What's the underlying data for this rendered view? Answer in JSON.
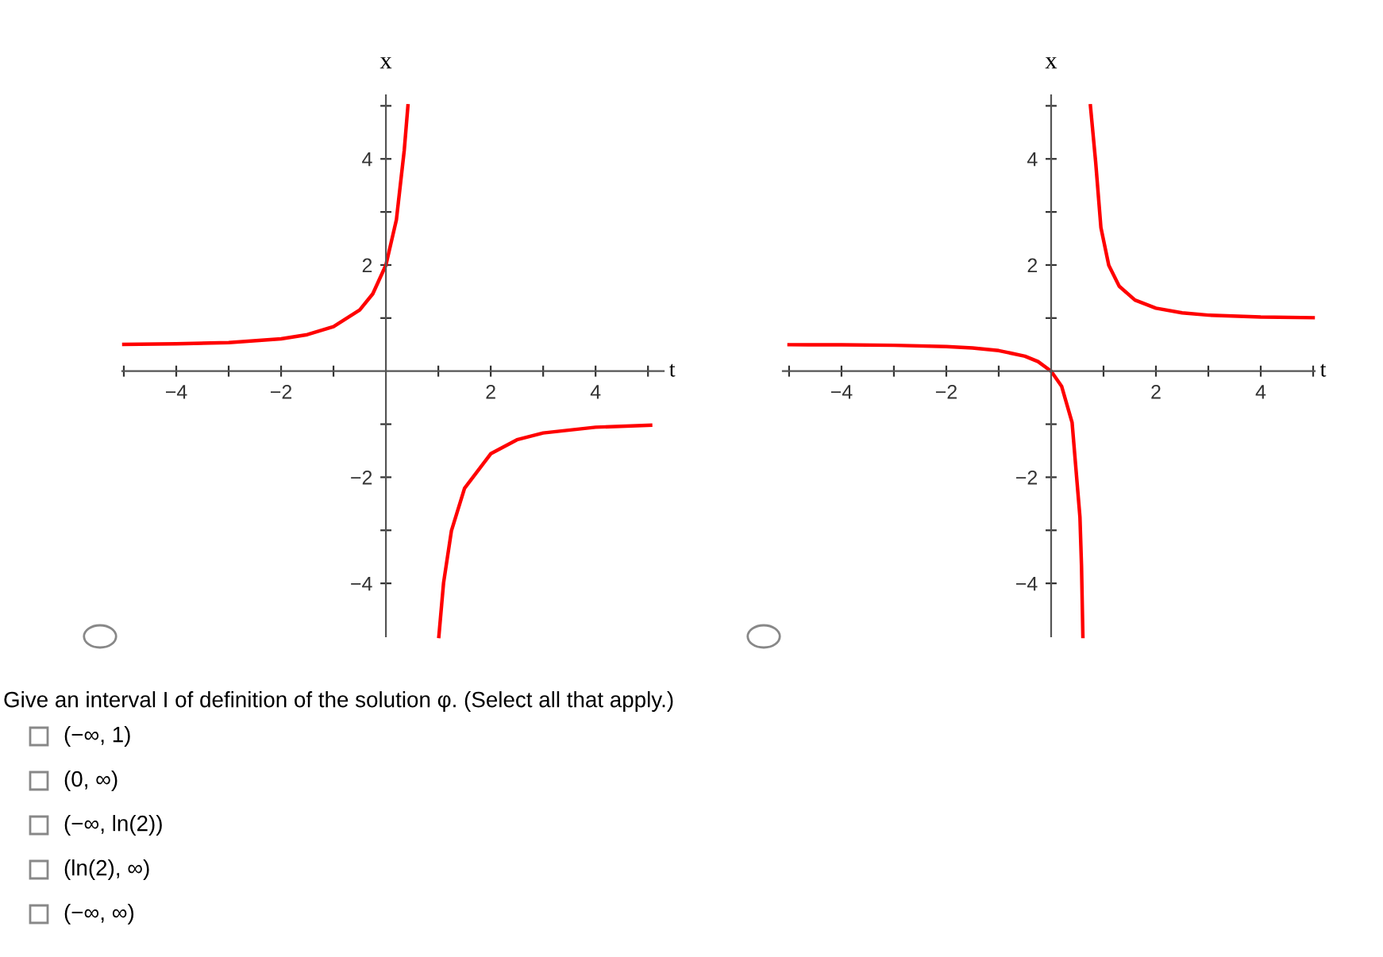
{
  "chart_data": [
    {
      "type": "line",
      "xlabel": "t",
      "ylabel": "x",
      "xlim": [
        -5.03,
        5.3
      ],
      "ylim": [
        -5,
        5.2
      ],
      "xticks": [
        {
          "value": -5,
          "label": null
        },
        -4,
        {
          "value": -3,
          "label": null
        },
        -2,
        {
          "value": -1,
          "label": null
        },
        {
          "value": 1,
          "label": null
        },
        2,
        {
          "value": 3,
          "label": null
        },
        4,
        {
          "value": 5,
          "label": null
        }
      ],
      "yticks": [
        -4,
        {
          "value": -3,
          "label": null
        },
        -2,
        {
          "value": -1,
          "label": null
        },
        {
          "value": 1,
          "label": null
        },
        2,
        {
          "value": 3,
          "label": null
        },
        4,
        {
          "value": 5,
          "label": null
        }
      ],
      "series": [
        {
          "color": "#ff0000",
          "x": [
            -5,
            -4,
            -3,
            -2,
            -1.5,
            -1,
            -0.5,
            -0.25,
            0,
            0.2,
            0.35,
            0.42,
            0.7,
            1.01,
            1.1,
            1.25,
            1.5,
            2,
            2.5,
            3,
            4,
            5.05
          ],
          "values": [
            0.505,
            0.514,
            0.538,
            0.609,
            0.688,
            0.838,
            1.153,
            1.457,
            2,
            2.853,
            4.164,
            5.0,
            null,
            -5.0,
            -3.99,
            -3.01,
            -2.209,
            -1.557,
            -1.294,
            -1.166,
            -1.057,
            -1.02
          ]
        }
      ]
    },
    {
      "type": "line",
      "xlabel": "t",
      "ylabel": "x",
      "xlim": [
        -5.12,
        5.03
      ],
      "ylim": [
        -5,
        5.2
      ],
      "xticks": [
        {
          "value": -5,
          "label": null
        },
        -4,
        {
          "value": -3,
          "label": null
        },
        -2,
        {
          "value": -1,
          "label": null
        },
        {
          "value": 1,
          "label": null
        },
        2,
        {
          "value": 3,
          "label": null
        },
        4,
        {
          "value": 5,
          "label": null
        }
      ],
      "yticks": [
        -4,
        {
          "value": -3,
          "label": null
        },
        -2,
        {
          "value": -1,
          "label": null
        },
        {
          "value": 1,
          "label": null
        },
        2,
        {
          "value": 3,
          "label": null
        },
        4,
        {
          "value": 5,
          "label": null
        }
      ],
      "series": [
        {
          "color": "#ff0000",
          "x": [
            -5,
            -4,
            -3,
            -2,
            -1.5,
            -1,
            -0.5,
            -0.25,
            0,
            0.2,
            0.4,
            0.55,
            0.58,
            0.606,
            0.7,
            0.75,
            0.85,
            0.95,
            1.1,
            1.3,
            1.6,
            2,
            2.5,
            3,
            4,
            5
          ],
          "values": [
            0.498,
            0.495,
            0.487,
            0.464,
            0.437,
            0.387,
            0.282,
            0.181,
            0,
            -0.284,
            -0.968,
            -2.75,
            -3.67,
            -5.0,
            null,
            5.0,
            3.94,
            2.707,
            1.996,
            1.599,
            1.339,
            1.186,
            1.098,
            1.055,
            1.019,
            1.007
          ]
        }
      ]
    },
    {
      "type": "other",
      "annotations": [
        "Give an interval I of definition of the solution φ. (Select all that apply.)",
        "(−∞, 1)",
        "(0, ∞)",
        "(−∞, ln(2))",
        "(ln(2), ∞)",
        "(−∞, ∞)"
      ]
    }
  ]
}
